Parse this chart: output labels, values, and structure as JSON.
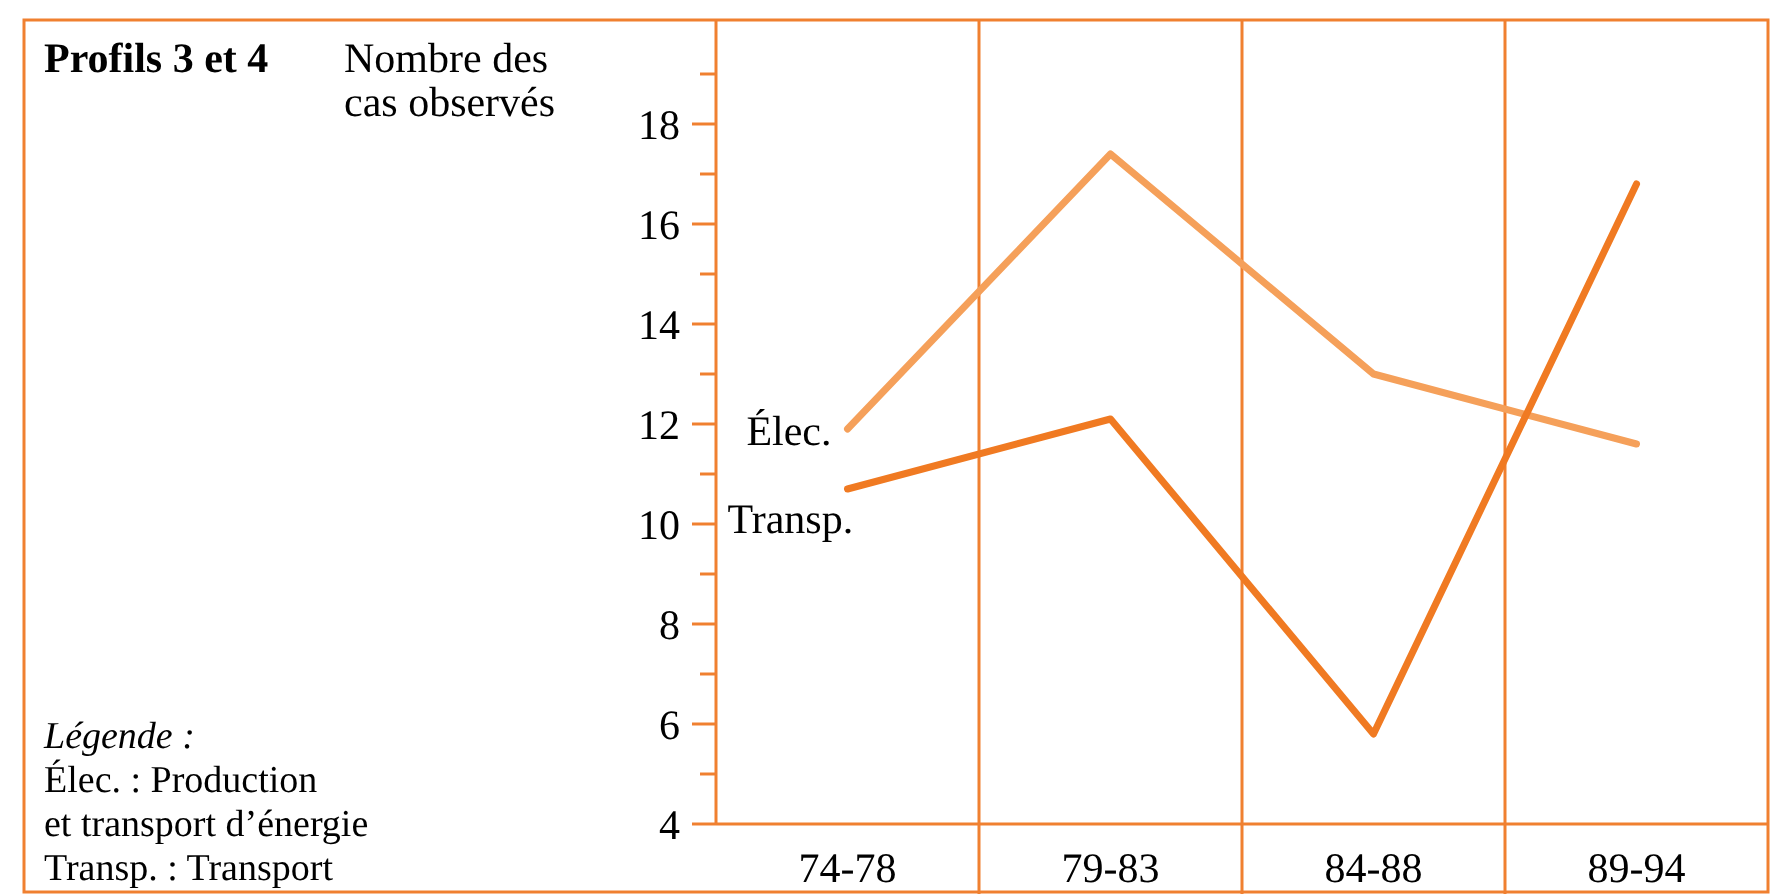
{
  "chart_data": {
    "type": "line",
    "title": "Profils 3 et 4",
    "ylabel": "Nombre des cas observés",
    "categories": [
      "74-78",
      "79-83",
      "84-88",
      "89-94"
    ],
    "series": [
      {
        "name": "Élec.",
        "color": "#f5a05a",
        "values": [
          11.9,
          17.4,
          13.0,
          11.6
        ]
      },
      {
        "name": "Transp.",
        "color": "#f07a22",
        "values": [
          10.7,
          12.1,
          5.8,
          16.8
        ]
      }
    ],
    "ylim": [
      4,
      20
    ],
    "yticks": [
      4,
      {
        "value": 5,
        "label": null
      },
      6,
      {
        "value": 7,
        "label": null
      },
      8,
      {
        "value": 9,
        "label": null
      },
      10,
      {
        "value": 11,
        "label": null
      },
      12,
      {
        "value": 13,
        "label": null
      },
      14,
      {
        "value": 15,
        "label": null
      },
      16,
      {
        "value": 17,
        "label": null
      },
      18,
      {
        "value": 19,
        "label": null
      }
    ],
    "grid": "x",
    "marker": "none",
    "line_style": "solid",
    "annotations": [
      "Légende :",
      "Élec. : Production",
      "et transport d’énergie",
      "Transp. : Transport"
    ]
  }
}
